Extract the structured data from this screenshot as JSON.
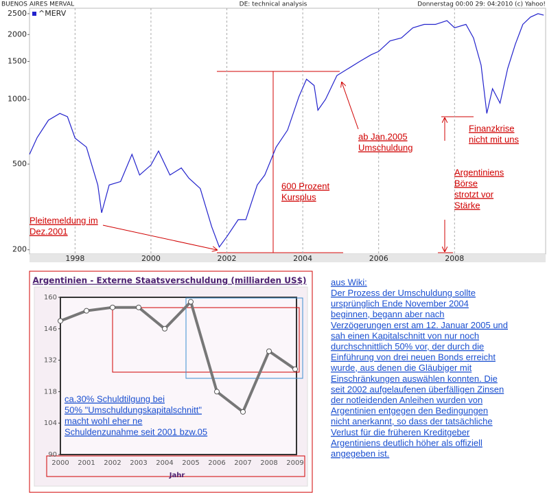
{
  "header": {
    "left": "BUENOS AIRES MERVAL",
    "center": "DE: technical analysis",
    "right": "Donnerstag 00:00 29: 04:2010 (c) Yahoo!"
  },
  "chart_data": [
    {
      "type": "line",
      "log_scale": true,
      "grid": true,
      "series": [
        {
          "name": "^MERV",
          "color": "#2222cc",
          "x": [
            1996.8,
            1997.0,
            1997.3,
            1997.6,
            1997.8,
            1998.0,
            1998.3,
            1998.6,
            1998.7,
            1998.9,
            1999.2,
            1999.5,
            1999.7,
            2000.0,
            2000.2,
            2000.5,
            2000.8,
            2001.0,
            2001.3,
            2001.6,
            2001.8,
            2002.0,
            2002.3,
            2002.5,
            2002.8,
            2003.0,
            2003.3,
            2003.6,
            2003.9,
            2004.1,
            2004.3,
            2004.4,
            2004.6,
            2004.9,
            2005.2,
            2005.5,
            2005.8,
            2006.0,
            2006.3,
            2006.6,
            2006.9,
            2007.2,
            2007.5,
            2007.8,
            2008.0,
            2008.3,
            2008.5,
            2008.7,
            2008.85,
            2009.0,
            2009.2,
            2009.4,
            2009.6,
            2009.8,
            2010.0,
            2010.2,
            2010.35
          ],
          "values": [
            555,
            664,
            800,
            860,
            830,
            660,
            600,
            400,
            297,
            400,
            415,
            555,
            445,
            495,
            575,
            445,
            480,
            430,
            385,
            256,
            206,
            230,
            276,
            276,
            400,
            445,
            600,
            720,
            1030,
            1240,
            1160,
            890,
            1000,
            1290,
            1390,
            1500,
            1610,
            1670,
            1870,
            1930,
            2150,
            2230,
            2230,
            2320,
            2150,
            2230,
            1930,
            1440,
            860,
            1120,
            960,
            1390,
            1800,
            2230,
            2410,
            2500,
            2460
          ]
        }
      ],
      "xlim": [
        1996.8,
        2010.4
      ],
      "xticks": [
        1998,
        2000,
        2002,
        2004,
        2006,
        2008
      ],
      "ylim": [
        191,
        2650
      ],
      "yticks": [
        200,
        500,
        1000,
        1500,
        2000,
        2500
      ],
      "annotations": [
        [
          "Pleitemeldung im",
          "Dez.2001"
        ],
        [
          "600 Prozent",
          "Kursplus"
        ],
        [
          "ab Jan.2005",
          "Umschuldung"
        ],
        [
          "Finanzkrise",
          "nicht mit uns"
        ],
        [
          "Argentiniens",
          "Börse",
          "strotzt vor",
          "Stärke"
        ]
      ]
    },
    {
      "type": "line",
      "title": "Argentinien - Externe Staatsverschuldung (milliarden US$)",
      "x_label": "Jahr",
      "categories": [
        "2000",
        "2001",
        "2002",
        "2003",
        "2004",
        "2005",
        "2006",
        "2007",
        "2008",
        "2009"
      ],
      "values": [
        149.5,
        154,
        155.5,
        155.5,
        146,
        158,
        118,
        109,
        136,
        128
      ],
      "color": "#777777",
      "ylim": [
        90,
        160
      ],
      "yticks": [
        90,
        104,
        118,
        132,
        146,
        160
      ],
      "annotations": [
        [
          "ca.30% Schuldtilgung bei",
          "50% \"Umschuldungskapitalschnitt\"",
          "macht wohl eher ne",
          "Schuldenzunahme seit 2001 bzw.05"
        ]
      ]
    }
  ],
  "note": [
    "aus Wiki:",
    "Der Prozess der Umschuldung sollte",
    "ursprünglich Ende November 2004",
    "beginnen, begann aber nach",
    "Verzögerungen erst am 12. Januar 2005 und",
    "sah einen Kapitalschnitt von nur noch",
    "durchschnittlich 50% vor, der durch die",
    "Einführung von drei neuen Bonds erreicht",
    "wurde, aus denen die Gläubiger mit",
    "Einschränkungen auswählen konnten. Die",
    "seit 2002 aufgelaufenen überfälligen Zinsen",
    "der notleidenden Anleihen wurden von",
    "Argentinien entgegen den Bedingungen",
    "nicht anerkannt, so dass der tatsächliche",
    "Verlust für die früheren Kreditgeber",
    "Argentiniens deutlich höher als offiziell",
    "angegeben ist."
  ]
}
